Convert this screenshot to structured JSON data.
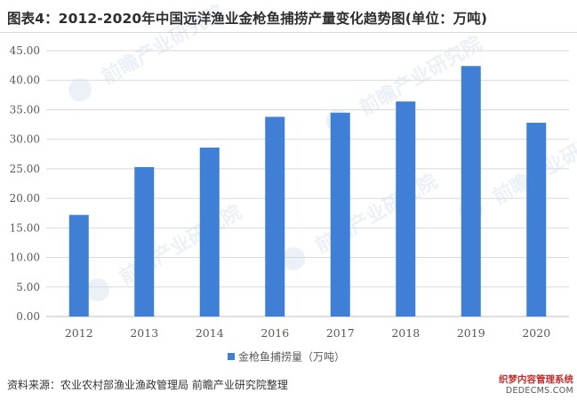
{
  "title": "图表4：2012-2020年中国远洋渔业金枪鱼捕捞产量变化趋势图(单位：万吨)",
  "source": "资料来源：农业农村部渔业渔政管理局 前瞻产业研究院整理",
  "watermark": {
    "text": "前瞻产业研究院",
    "badge_line1": "织梦内容管理系统",
    "badge_line2": "DEDECMS.COM"
  },
  "colors": {
    "bar": "#3f7fd6",
    "grid": "#d9d9d9",
    "axis_text": "#595959",
    "title": "#2e2e2e"
  },
  "chart_data": {
    "type": "bar",
    "categories": [
      "2012",
      "2013",
      "2014",
      "2016",
      "2017",
      "2018",
      "2019",
      "2020"
    ],
    "series": [
      {
        "name": "金枪鱼捕捞量（万吨）",
        "values": [
          17.2,
          25.3,
          28.6,
          33.8,
          34.5,
          36.4,
          42.4,
          32.8
        ]
      }
    ],
    "yticks": [
      "0.00",
      "5.00",
      "10.00",
      "15.00",
      "20.00",
      "25.00",
      "30.00",
      "35.00",
      "40.00",
      "45.00"
    ],
    "ylim": [
      0,
      45
    ],
    "xlabel": "",
    "ylabel": "",
    "grid": true,
    "legend_position": "bottom-center"
  }
}
